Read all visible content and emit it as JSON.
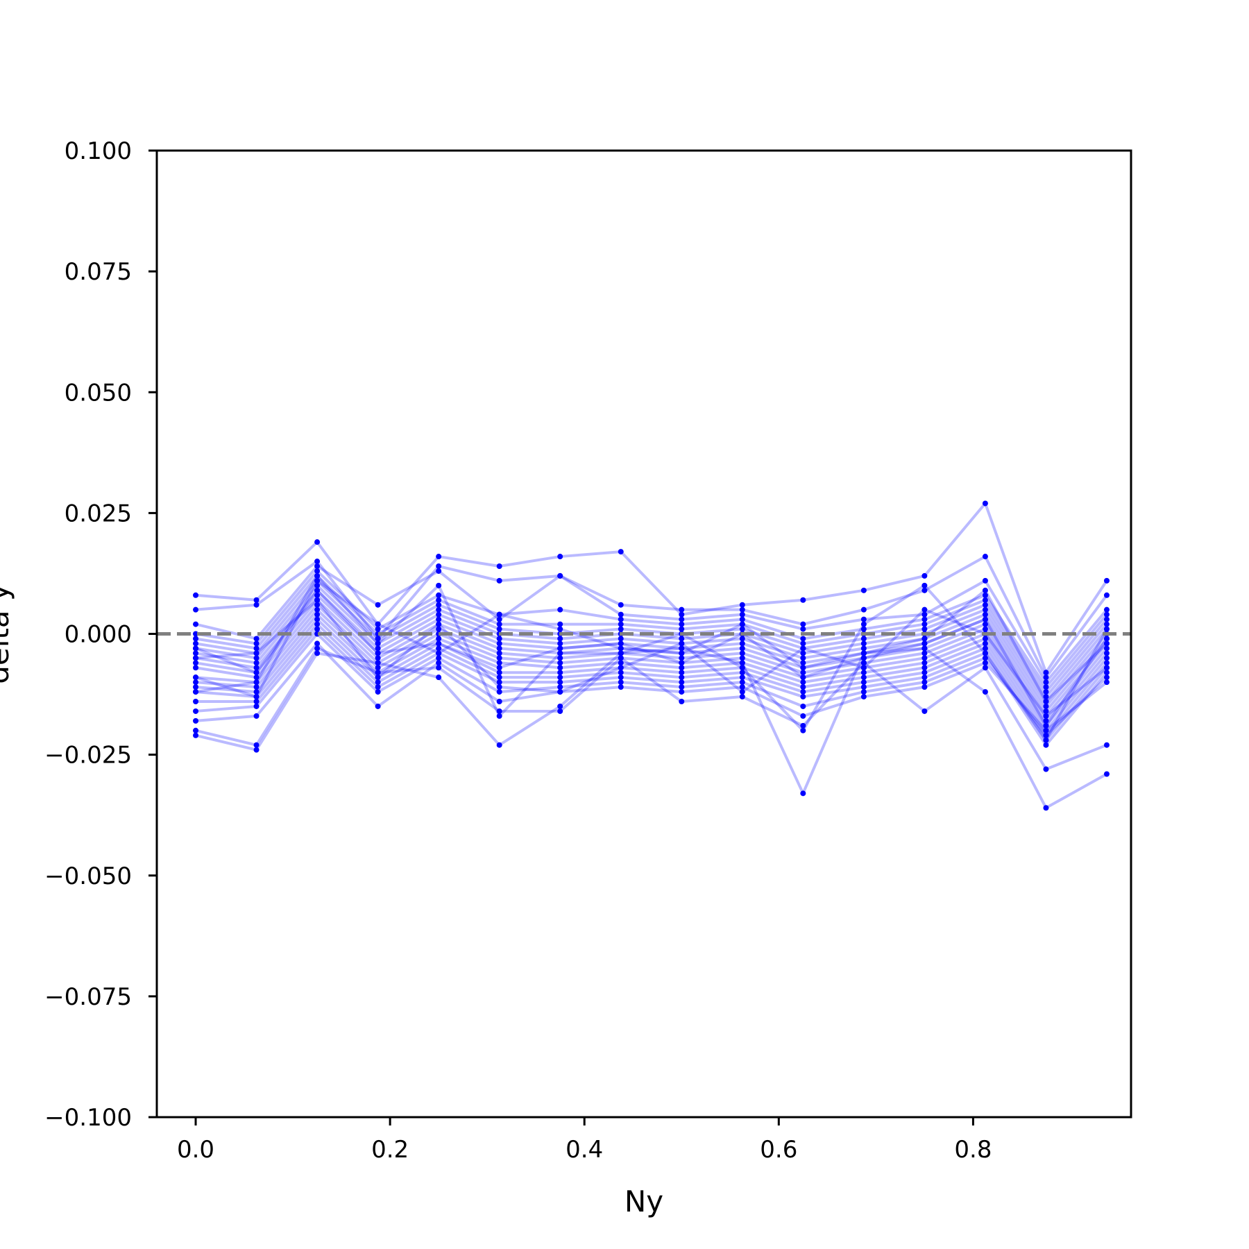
{
  "chart_data": {
    "type": "line",
    "title": "",
    "xlabel": "Ny",
    "ylabel": "delta y",
    "xlim": [
      -0.04,
      0.9625
    ],
    "ylim": [
      -0.1,
      0.1
    ],
    "x_ticks": [
      0.0,
      0.2,
      0.4,
      0.6,
      0.8
    ],
    "x_tick_labels": [
      "0.0",
      "0.2",
      "0.4",
      "0.6",
      "0.8"
    ],
    "y_ticks": [
      0.1,
      0.075,
      0.05,
      0.025,
      0.0,
      -0.025,
      -0.05,
      -0.075,
      -0.1
    ],
    "y_tick_labels": [
      "0.100",
      "0.075",
      "0.050",
      "0.025",
      "0.000",
      "−0.025",
      "−0.050",
      "−0.075",
      "−0.100"
    ],
    "grid": false,
    "legend": "none",
    "colors": {
      "series": "#0000ff",
      "reference_line": "#808080",
      "axes": "#000000"
    },
    "reference_line": {
      "y": 0.0,
      "style": "dashed"
    },
    "x": [
      0.0,
      0.0625,
      0.125,
      0.1875,
      0.25,
      0.3125,
      0.375,
      0.4375,
      0.5,
      0.5625,
      0.625,
      0.6875,
      0.75,
      0.8125,
      0.875,
      0.9375
    ],
    "series": [
      {
        "values": [
          0.008,
          0.007,
          0.019,
          0.002,
          0.016,
          0.014,
          0.016,
          0.017,
          0.004,
          0.006,
          0.007,
          0.009,
          0.012,
          0.027,
          -0.008,
          0.011
        ]
      },
      {
        "values": [
          0.005,
          0.006,
          0.015,
          -0.001,
          0.014,
          0.011,
          0.012,
          0.006,
          0.005,
          0.005,
          0.002,
          0.005,
          0.009,
          0.016,
          -0.009,
          0.008
        ]
      },
      {
        "values": [
          0.002,
          -0.001,
          0.014,
          0.006,
          0.013,
          0.003,
          0.012,
          0.004,
          0.003,
          0.004,
          0.001,
          0.003,
          0.004,
          0.011,
          -0.01,
          0.005
        ]
      },
      {
        "values": [
          0.0,
          -0.002,
          0.013,
          0.001,
          0.008,
          0.004,
          0.005,
          0.003,
          0.002,
          0.003,
          -0.001,
          0.001,
          0.003,
          0.008,
          -0.011,
          0.004
        ]
      },
      {
        "values": [
          -0.001,
          -0.003,
          0.012,
          0.0,
          0.007,
          0.002,
          0.002,
          0.002,
          0.001,
          0.002,
          -0.002,
          0.0,
          0.002,
          0.007,
          -0.012,
          0.003
        ]
      },
      {
        "values": [
          -0.002,
          -0.004,
          0.011,
          -0.001,
          0.006,
          0.001,
          0.0,
          0.001,
          0.0,
          0.001,
          -0.003,
          -0.001,
          0.001,
          0.006,
          -0.013,
          0.002
        ]
      },
      {
        "values": [
          -0.003,
          -0.005,
          0.01,
          -0.002,
          0.005,
          0.0,
          -0.001,
          0.0,
          -0.001,
          0.0,
          -0.004,
          -0.002,
          0.0,
          0.005,
          -0.014,
          0.001
        ]
      },
      {
        "values": [
          -0.004,
          -0.006,
          0.009,
          -0.003,
          0.004,
          -0.001,
          -0.002,
          -0.001,
          -0.002,
          -0.001,
          -0.005,
          -0.003,
          -0.001,
          0.004,
          -0.015,
          0.0
        ]
      },
      {
        "values": [
          -0.005,
          -0.007,
          0.008,
          -0.004,
          0.003,
          -0.002,
          -0.003,
          -0.002,
          -0.003,
          -0.002,
          -0.006,
          -0.004,
          -0.002,
          0.003,
          -0.016,
          -0.001
        ]
      },
      {
        "values": [
          -0.006,
          -0.008,
          0.007,
          -0.005,
          0.002,
          -0.003,
          -0.004,
          -0.003,
          -0.004,
          -0.003,
          -0.007,
          -0.005,
          -0.003,
          0.002,
          -0.017,
          -0.002
        ]
      },
      {
        "values": [
          -0.007,
          -0.009,
          0.006,
          -0.006,
          0.001,
          -0.004,
          -0.005,
          -0.004,
          -0.005,
          -0.004,
          -0.008,
          -0.006,
          -0.004,
          0.001,
          -0.018,
          -0.003
        ]
      },
      {
        "values": [
          -0.009,
          -0.01,
          0.005,
          -0.007,
          0.0,
          -0.005,
          -0.006,
          -0.005,
          -0.006,
          -0.005,
          -0.009,
          -0.007,
          -0.005,
          0.0,
          -0.019,
          -0.004
        ]
      },
      {
        "values": [
          -0.01,
          -0.011,
          0.004,
          -0.008,
          -0.001,
          -0.006,
          -0.007,
          -0.006,
          -0.007,
          -0.006,
          -0.01,
          -0.008,
          -0.006,
          -0.001,
          -0.02,
          -0.005
        ]
      },
      {
        "values": [
          -0.011,
          -0.012,
          0.003,
          -0.009,
          -0.002,
          -0.008,
          -0.008,
          -0.007,
          -0.008,
          -0.007,
          -0.011,
          -0.009,
          -0.007,
          -0.002,
          -0.021,
          -0.006
        ]
      },
      {
        "values": [
          -0.012,
          -0.013,
          0.002,
          -0.01,
          -0.003,
          -0.009,
          -0.009,
          -0.008,
          -0.009,
          -0.008,
          -0.012,
          -0.01,
          -0.008,
          -0.003,
          -0.022,
          -0.007
        ]
      },
      {
        "values": [
          -0.014,
          -0.014,
          0.001,
          -0.011,
          -0.004,
          -0.01,
          -0.01,
          -0.009,
          -0.01,
          -0.009,
          -0.013,
          -0.011,
          -0.009,
          -0.004,
          -0.023,
          -0.008
        ]
      },
      {
        "values": [
          -0.016,
          -0.015,
          0.0,
          -0.012,
          -0.005,
          -0.012,
          -0.011,
          -0.01,
          -0.011,
          -0.01,
          -0.015,
          -0.012,
          -0.01,
          -0.005,
          -0.021,
          -0.009
        ]
      },
      {
        "values": [
          -0.018,
          -0.017,
          -0.002,
          -0.015,
          -0.006,
          -0.014,
          -0.012,
          -0.011,
          -0.012,
          -0.011,
          -0.017,
          -0.013,
          -0.011,
          -0.006,
          -0.02,
          -0.01
        ]
      },
      {
        "values": [
          -0.02,
          -0.023,
          -0.003,
          -0.008,
          -0.007,
          -0.016,
          -0.016,
          -0.005,
          -0.014,
          -0.013,
          -0.019,
          -0.006,
          -0.016,
          -0.007,
          -0.028,
          -0.023
        ]
      },
      {
        "values": [
          -0.021,
          -0.024,
          -0.004,
          -0.006,
          -0.009,
          -0.023,
          -0.015,
          -0.004,
          -0.003,
          -0.006,
          -0.033,
          -0.004,
          -0.003,
          -0.012,
          -0.036,
          -0.029
        ]
      },
      {
        "values": [
          -0.012,
          -0.01,
          0.012,
          -0.002,
          0.01,
          -0.017,
          -0.004,
          -0.004,
          0.0,
          -0.007,
          -0.02,
          0.002,
          0.01,
          -0.004,
          -0.022,
          0.001
        ]
      },
      {
        "values": [
          -0.009,
          -0.013,
          0.011,
          0.002,
          -0.004,
          0.004,
          0.001,
          -0.003,
          -0.004,
          0.002,
          -0.007,
          -0.004,
          -0.001,
          0.009,
          -0.014,
          -0.002
        ]
      },
      {
        "values": [
          -0.005,
          -0.004,
          0.007,
          -0.009,
          0.002,
          -0.011,
          -0.012,
          -0.007,
          -0.002,
          -0.012,
          -0.003,
          -0.007,
          0.005,
          0.0,
          -0.017,
          -0.007
        ]
      },
      {
        "values": [
          -0.003,
          -0.008,
          0.009,
          -0.004,
          -0.002,
          -0.007,
          -0.003,
          -0.002,
          -0.006,
          0.0,
          -0.009,
          -0.005,
          -0.002,
          0.003,
          -0.019,
          -0.001
        ]
      }
    ]
  }
}
